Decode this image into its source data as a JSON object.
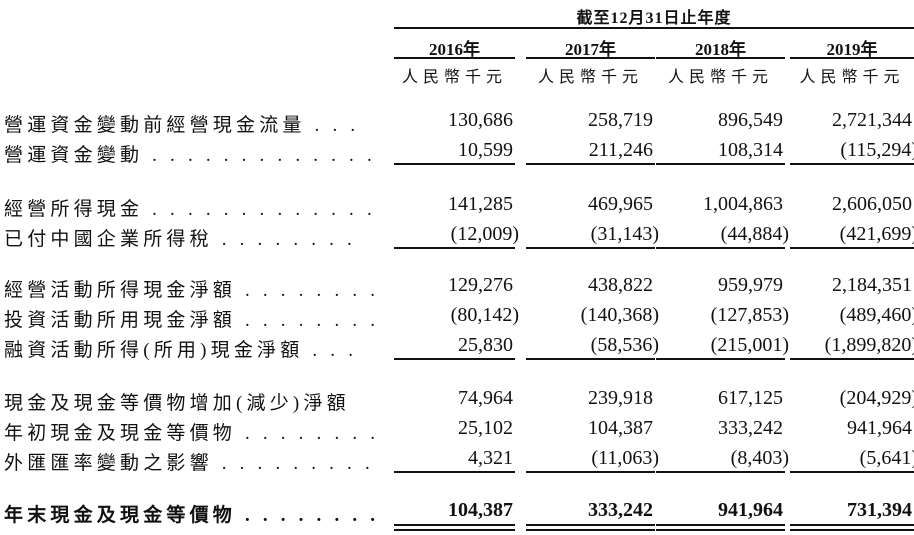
{
  "header": {
    "period": "截至12月31日止年度",
    "columns": [
      {
        "year": "2016年",
        "unit": "人民幣千元"
      },
      {
        "year": "2017年",
        "unit": "人民幣千元"
      },
      {
        "year": "2018年",
        "unit": "人民幣千元"
      },
      {
        "year": "2019年",
        "unit": "人民幣千元"
      }
    ]
  },
  "rows": [
    {
      "label": "營運資金變動前經營現金流量 . . .",
      "values": [
        "130,686",
        "258,719",
        "896,549",
        "2,721,344"
      ]
    },
    {
      "label": "營運資金變動 . . . . . . . . . . . . .",
      "values": [
        "10,599",
        "211,246",
        "108,314",
        "(115,294)"
      ],
      "rule": "single"
    },
    {
      "label": "經營所得現金 . . . . . . . . . . . . .",
      "values": [
        "141,285",
        "469,965",
        "1,004,863",
        "2,606,050"
      ]
    },
    {
      "label": "已付中國企業所得稅 . . . . . . . .",
      "values": [
        "(12,009)",
        "(31,143)",
        "(44,884)",
        "(421,699)"
      ],
      "rule": "single"
    },
    {
      "label": "經營活動所得現金淨額 . . . . . . . .",
      "values": [
        "129,276",
        "438,822",
        "959,979",
        "2,184,351"
      ]
    },
    {
      "label": "投資活動所用現金淨額 . . . . . . . .",
      "values": [
        "(80,142)",
        "(140,368)",
        "(127,853)",
        "(489,460)"
      ]
    },
    {
      "label": "融資活動所得(所用)現金淨額 . . .",
      "values": [
        "25,830",
        "(58,536)",
        "(215,001)",
        "(1,899,820)"
      ],
      "rule": "single"
    },
    {
      "label": "現金及現金等價物增加(減少)淨額",
      "values": [
        "74,964",
        "239,918",
        "617,125",
        "(204,929)"
      ]
    },
    {
      "label": "年初現金及現金等價物 . . . . . . . .",
      "values": [
        "25,102",
        "104,387",
        "333,242",
        "941,964"
      ]
    },
    {
      "label": "外匯匯率變動之影響 . . . . . . . . .",
      "values": [
        "4,321",
        "(11,063)",
        "(8,403)",
        "(5,641)"
      ],
      "rule": "single"
    },
    {
      "label": "年末現金及現金等價物 . . . . . . . .",
      "values": [
        "104,387",
        "333,242",
        "941,964",
        "731,394"
      ],
      "rule": "double",
      "bold": true
    }
  ]
}
